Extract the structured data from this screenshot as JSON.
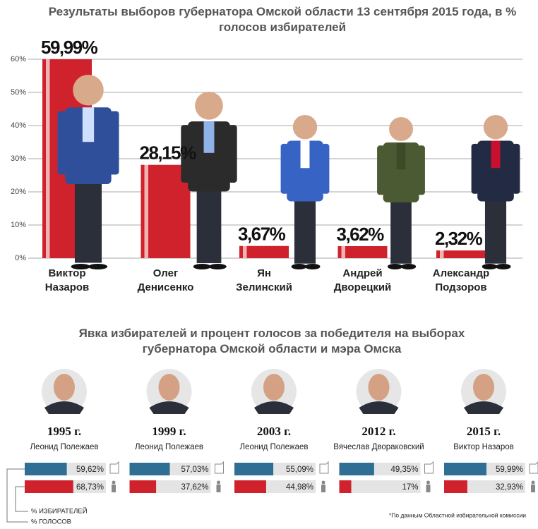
{
  "chart_data": [
    {
      "type": "bar",
      "title": "Результаты выборов губернатора Омской области 13 сентября 2015 года, в % голосов избирателей",
      "categories": [
        "Виктор Назаров",
        "Олег Денисенко",
        "Ян Зелинский",
        "Андрей Дворецкий",
        "Александр Подзоров"
      ],
      "values": [
        59.99,
        28.15,
        3.67,
        3.62,
        2.32
      ],
      "value_labels": [
        "59,99%",
        "28,15%",
        "3,67%",
        "3,62%",
        "2,32%"
      ],
      "color": "#d0222d",
      "ylim": [
        0,
        60
      ],
      "yticks": [
        {
          "value": 0,
          "label": "0%"
        },
        {
          "value": 10,
          "label": "10%"
        },
        {
          "value": 20,
          "label": "20%"
        },
        {
          "value": 30,
          "label": "30%"
        },
        {
          "value": 40,
          "label": "40%"
        },
        {
          "value": 50,
          "label": "50%"
        },
        {
          "value": 60,
          "label": "60%"
        }
      ],
      "grid": true
    },
    {
      "type": "paired-bar",
      "title": "Явка избирателей и процент голосов за победителя на выборах губернатора Омской области и мэра Омска",
      "categories": [
        "1995 г.",
        "1999 г.",
        "2003 г.",
        "2012 г.",
        "2015 г."
      ],
      "candidates": [
        "Леонид Полежаев",
        "Леонид Полежаев",
        "Леонид Полежаев",
        "Вячеслав Двораковский",
        "Виктор Назаров"
      ],
      "series": [
        {
          "name": "% ГОЛОСОВ",
          "color": "#2f6f93",
          "values": [
            59.62,
            57.03,
            55.09,
            49.35,
            59.99
          ],
          "value_labels": [
            "59,62%",
            "57,03%",
            "55,09%",
            "49,35%",
            "59,99%"
          ]
        },
        {
          "name": "% ИЗБИРАТЕЛЕЙ",
          "color": "#d0222d",
          "values": [
            68.73,
            37.62,
            44.98,
            17,
            32.93
          ],
          "value_labels": [
            "68,73%",
            "37,62%",
            "44,98%",
            "17%",
            "32,93%"
          ]
        }
      ],
      "note": "*По данным Областной избирательной комиссии"
    }
  ]
}
